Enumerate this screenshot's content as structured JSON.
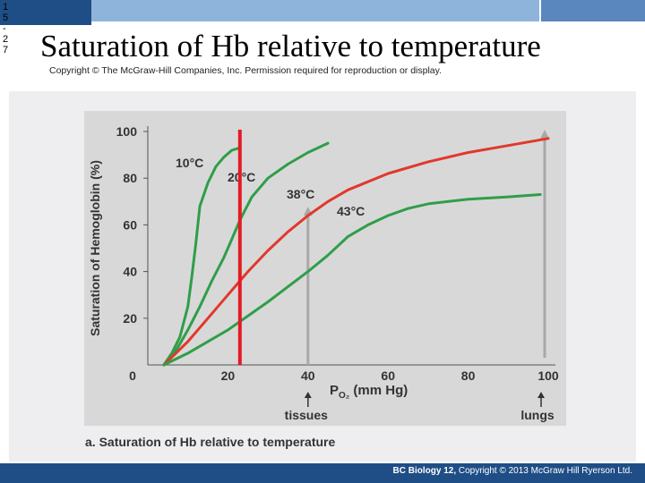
{
  "slide": {
    "side_number": [
      "1",
      "5",
      "-",
      "2",
      "7"
    ],
    "title": "Saturation of Hb relative to temperature",
    "copyright_top": "Copyright © The McGraw-Hill Companies, Inc. Permission required for reproduction or display.",
    "footer_book": "BC Biology 12,",
    "footer_rest": " Copyright © 2013 McGraw Hill Ryerson Ltd."
  },
  "colors": {
    "curve_green": "#2f9e48",
    "curve_red": "#e0392b",
    "marker_red": "#e31b23",
    "arrow_gray": "#a8a8a8",
    "axis_text": "#333333",
    "title_bar": "#1f4e86"
  },
  "chart_data": {
    "type": "line",
    "title": "",
    "caption": "a. Saturation of Hb relative to temperature",
    "ylabel": "Saturation of Hemoglobin (%)",
    "xlabel_main": "P",
    "xlabel_sub": "O₂",
    "xlabel_rest": " (mm Hg)",
    "xlim": [
      0,
      100
    ],
    "ylim": [
      0,
      100
    ],
    "xticks": [
      0,
      20,
      40,
      60,
      80,
      100
    ],
    "yticks": [
      20,
      40,
      60,
      80,
      100
    ],
    "grid": false,
    "series": [
      {
        "name": "10°C",
        "color": "#2f9e48",
        "x": [
          4,
          6,
          8,
          10,
          11,
          12,
          13,
          15,
          17,
          19,
          21,
          23
        ],
        "y": [
          0,
          5,
          12,
          25,
          38,
          52,
          68,
          78,
          85,
          89,
          92,
          93
        ]
      },
      {
        "name": "20°C",
        "color": "#2f9e48",
        "x": [
          4,
          7,
          10,
          13,
          16,
          19,
          21,
          23,
          26,
          30,
          35,
          40,
          45
        ],
        "y": [
          0,
          6,
          15,
          25,
          36,
          46,
          54,
          62,
          72,
          80,
          86,
          91,
          95
        ]
      },
      {
        "name": "38°C",
        "color": "#e0392b",
        "x": [
          4,
          10,
          15,
          20,
          25,
          30,
          35,
          40,
          45,
          50,
          60,
          70,
          80,
          90,
          100
        ],
        "y": [
          0,
          10,
          20,
          30,
          40,
          49,
          57,
          64,
          70,
          75,
          82,
          87,
          91,
          94,
          97
        ]
      },
      {
        "name": "43°C",
        "color": "#2f9e48",
        "x": [
          4,
          10,
          20,
          30,
          40,
          45,
          50,
          55,
          60,
          65,
          70,
          80,
          90,
          98
        ],
        "y": [
          0,
          5,
          15,
          27,
          40,
          47,
          55,
          60,
          64,
          67,
          69,
          71,
          72,
          73
        ]
      }
    ],
    "annotations": {
      "temperature_marker": {
        "x": 23,
        "y_from": 0,
        "y_to": 100
      },
      "tissues": {
        "label": "tissues",
        "x": 40,
        "arrow_top": 67
      },
      "lungs": {
        "label": "lungs",
        "x": 100,
        "arrow_top": 100
      }
    }
  }
}
